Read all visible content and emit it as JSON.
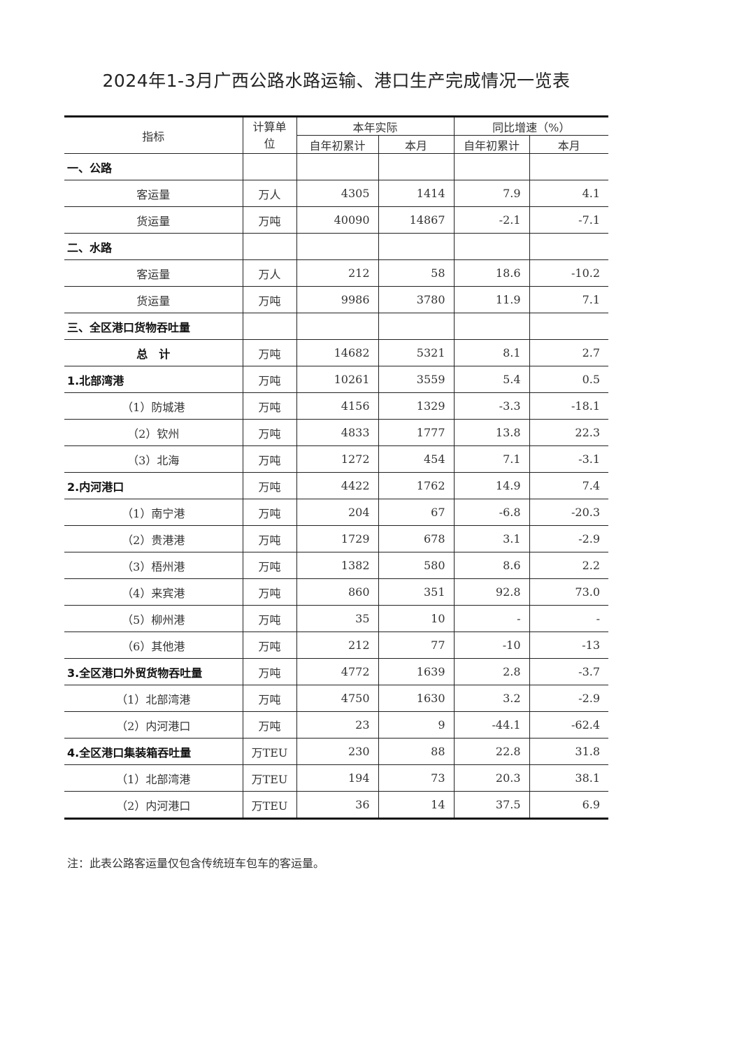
{
  "title": "2024年1-3月广西公路水路运输、港口生产完成情况一览表",
  "header": {
    "indicator": "指标",
    "unit": "计算单位",
    "actual": "本年实际",
    "growth": "同比增速（%）",
    "cum": "自年初累计",
    "month": "本月",
    "cum2": "自年初累计",
    "month2": "本月"
  },
  "rows": [
    {
      "label": "一、公路",
      "type": "section",
      "unit": "",
      "cum": "",
      "month": "",
      "cum_pct": "",
      "month_pct": ""
    },
    {
      "label": "客运量",
      "type": "item",
      "unit": "万人",
      "cum": "4305",
      "month": "1414",
      "cum_pct": "7.9",
      "month_pct": "4.1"
    },
    {
      "label": "货运量",
      "type": "item",
      "unit": "万吨",
      "cum": "40090",
      "month": "14867",
      "cum_pct": "-2.1",
      "month_pct": "-7.1"
    },
    {
      "label": "二、水路",
      "type": "section",
      "unit": "",
      "cum": "",
      "month": "",
      "cum_pct": "",
      "month_pct": ""
    },
    {
      "label": "客运量",
      "type": "item",
      "unit": "万人",
      "cum": "212",
      "month": "58",
      "cum_pct": "18.6",
      "month_pct": "-10.2"
    },
    {
      "label": "货运量",
      "type": "item",
      "unit": "万吨",
      "cum": "9986",
      "month": "3780",
      "cum_pct": "11.9",
      "month_pct": "7.1"
    },
    {
      "label": "三、全区港口货物吞吐量",
      "type": "section",
      "unit": "",
      "cum": "",
      "month": "",
      "cum_pct": "",
      "month_pct": ""
    },
    {
      "label": "总　计",
      "type": "total",
      "unit": "万吨",
      "cum": "14682",
      "month": "5321",
      "cum_pct": "8.1",
      "month_pct": "2.7"
    },
    {
      "label": "1.北部湾港",
      "type": "section",
      "unit": "万吨",
      "cum": "10261",
      "month": "3559",
      "cum_pct": "5.4",
      "month_pct": "0.5"
    },
    {
      "label": "（1）防城港",
      "type": "item",
      "unit": "万吨",
      "cum": "4156",
      "month": "1329",
      "cum_pct": "-3.3",
      "month_pct": "-18.1"
    },
    {
      "label": "（2）钦州",
      "type": "item",
      "unit": "万吨",
      "cum": "4833",
      "month": "1777",
      "cum_pct": "13.8",
      "month_pct": "22.3"
    },
    {
      "label": "（3）北海",
      "type": "item",
      "unit": "万吨",
      "cum": "1272",
      "month": "454",
      "cum_pct": "7.1",
      "month_pct": "-3.1"
    },
    {
      "label": "2.内河港口",
      "type": "section",
      "unit": "万吨",
      "cum": "4422",
      "month": "1762",
      "cum_pct": "14.9",
      "month_pct": "7.4"
    },
    {
      "label": "（1）南宁港",
      "type": "item",
      "unit": "万吨",
      "cum": "204",
      "month": "67",
      "cum_pct": "-6.8",
      "month_pct": "-20.3"
    },
    {
      "label": "（2）贵港港",
      "type": "item",
      "unit": "万吨",
      "cum": "1729",
      "month": "678",
      "cum_pct": "3.1",
      "month_pct": "-2.9"
    },
    {
      "label": "（3）梧州港",
      "type": "item",
      "unit": "万吨",
      "cum": "1382",
      "month": "580",
      "cum_pct": "8.6",
      "month_pct": "2.2"
    },
    {
      "label": "（4）来宾港",
      "type": "item",
      "unit": "万吨",
      "cum": "860",
      "month": "351",
      "cum_pct": "92.8",
      "month_pct": "73.0"
    },
    {
      "label": "（5）柳州港",
      "type": "item",
      "unit": "万吨",
      "cum": "35",
      "month": "10",
      "cum_pct": "-",
      "month_pct": "-"
    },
    {
      "label": "（6）其他港",
      "type": "item",
      "unit": "万吨",
      "cum": "212",
      "month": "77",
      "cum_pct": "-10",
      "month_pct": "-13"
    },
    {
      "label": "3.全区港口外贸货物吞吐量",
      "type": "section",
      "unit": "万吨",
      "cum": "4772",
      "month": "1639",
      "cum_pct": "2.8",
      "month_pct": "-3.7"
    },
    {
      "label": "（1）北部湾港",
      "type": "item",
      "unit": "万吨",
      "cum": "4750",
      "month": "1630",
      "cum_pct": "3.2",
      "month_pct": "-2.9"
    },
    {
      "label": "（2）内河港口",
      "type": "item",
      "unit": "万吨",
      "cum": "23",
      "month": "9",
      "cum_pct": "-44.1",
      "month_pct": "-62.4"
    },
    {
      "label": "4.全区港口集装箱吞吐量",
      "type": "section",
      "unit": "万TEU",
      "cum": "230",
      "month": "88",
      "cum_pct": "22.8",
      "month_pct": "31.8"
    },
    {
      "label": "（1）北部湾港",
      "type": "item",
      "unit": "万TEU",
      "cum": "194",
      "month": "73",
      "cum_pct": "20.3",
      "month_pct": "38.1"
    },
    {
      "label": "（2）内河港口",
      "type": "item",
      "unit": "万TEU",
      "cum": "36",
      "month": "14",
      "cum_pct": "37.5",
      "month_pct": "6.9"
    }
  ],
  "note": "注：此表公路客运量仅包含传统班车包车的客运量。"
}
